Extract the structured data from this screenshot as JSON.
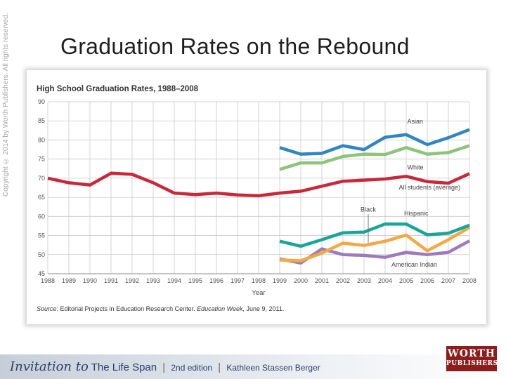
{
  "copyright": "Copyright © 2014 by Worth Publishers. All rights reserved.",
  "slide_title": "Graduation Rates on the Rebound",
  "footer": {
    "series_script": "Invitation to",
    "series_name": "The Life Span",
    "edition": "2nd edition",
    "author": "Kathleen Stassen Berger"
  },
  "logo": {
    "line1": "WORTH",
    "line2": "PUBLISHERS"
  },
  "colors": {
    "asian": "#2f86c2",
    "white": "#8dc47a",
    "all": "#c9283a",
    "hispanic": "#19a69a",
    "black": "#f2a944",
    "american_indian": "#9d7bbb",
    "grid": "#c9c9c9"
  },
  "chart_data": {
    "type": "line",
    "title": "High School Graduation Rates, 1988–2008",
    "xlabel": "Year",
    "ylabel": "",
    "ylim": [
      45,
      90
    ],
    "yticks": [
      45,
      50,
      55,
      60,
      65,
      70,
      75,
      80,
      85,
      90
    ],
    "x": [
      1988,
      1989,
      1990,
      1991,
      1992,
      1993,
      1994,
      1995,
      1996,
      1997,
      1998,
      1999,
      2000,
      2001,
      2002,
      2003,
      2004,
      2005,
      2006,
      2007,
      2008
    ],
    "grid": true,
    "source_label": "Source:",
    "source_text": " Editorial Projects in Education Research Center. ",
    "source_pub": "Education Week,",
    "source_date": " June 9, 2011.",
    "series": [
      {
        "key": "asian",
        "name": "Asian",
        "color": "#2f86c2",
        "x": [
          1999,
          2000,
          2001,
          2002,
          2003,
          2004,
          2005,
          2006,
          2007,
          2008
        ],
        "values": [
          78,
          76.3,
          76.5,
          78.5,
          77.5,
          80.7,
          81.4,
          78.8,
          80.6,
          82.7
        ]
      },
      {
        "key": "white",
        "name": "White",
        "color": "#8dc47a",
        "x": [
          1999,
          2000,
          2001,
          2002,
          2003,
          2004,
          2005,
          2006,
          2007,
          2008
        ],
        "values": [
          72.3,
          74,
          74,
          75.7,
          76.3,
          76.2,
          78,
          76.3,
          76.7,
          78.5
        ]
      },
      {
        "key": "all",
        "name": "All students (average)",
        "color": "#c9283a",
        "x": [
          1988,
          1989,
          1990,
          1991,
          1992,
          1993,
          1994,
          1995,
          1996,
          1997,
          1998,
          1999,
          2000,
          2001,
          2002,
          2003,
          2004,
          2005,
          2006,
          2007,
          2008
        ],
        "values": [
          70,
          68.8,
          68.2,
          71.3,
          71,
          68.8,
          66.1,
          65.7,
          66.1,
          65.6,
          65.4,
          66.1,
          66.6,
          67.9,
          69.2,
          69.5,
          69.8,
          70.5,
          69.1,
          68.7,
          71.2
        ]
      },
      {
        "key": "hispanic",
        "name": "Hispanic",
        "color": "#19a69a",
        "x": [
          1999,
          2000,
          2001,
          2002,
          2003,
          2004,
          2005,
          2006,
          2007,
          2008
        ],
        "values": [
          53.5,
          52.2,
          53.9,
          55.7,
          55.9,
          58,
          58,
          55.2,
          55.6,
          57.7
        ]
      },
      {
        "key": "black",
        "name": "Black",
        "color": "#f2a944",
        "x": [
          1999,
          2000,
          2001,
          2002,
          2003,
          2004,
          2005,
          2006,
          2007,
          2008
        ],
        "values": [
          48.6,
          48.4,
          50.4,
          53,
          52.4,
          53.5,
          55.1,
          51,
          53.9,
          57.1
        ]
      },
      {
        "key": "american_indian",
        "name": "American Indian",
        "color": "#9d7bbb",
        "x": [
          1999,
          2000,
          2001,
          2002,
          2003,
          2004,
          2005,
          2006,
          2007,
          2008
        ],
        "values": [
          48.9,
          47.8,
          51.5,
          50,
          49.8,
          49.3,
          50.6,
          50,
          50.6,
          53.6
        ]
      }
    ],
    "labels": [
      {
        "series": "asian",
        "text": "Asian"
      },
      {
        "series": "white",
        "text": "White"
      },
      {
        "series": "all",
        "text": "All students (average)"
      },
      {
        "series": "black",
        "text": "Black"
      },
      {
        "series": "hispanic",
        "text": "Hispanic"
      },
      {
        "series": "american_indian",
        "text": "American Indian"
      }
    ]
  }
}
